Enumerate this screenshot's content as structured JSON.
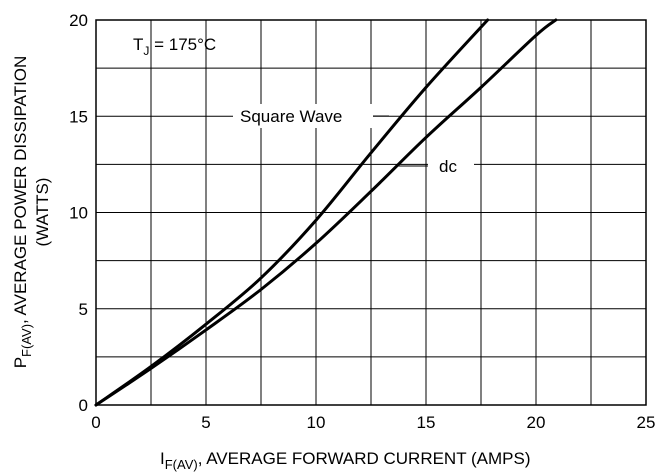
{
  "chart_data": {
    "type": "line",
    "xlabel": {
      "main": "I",
      "sub": "F(AV)",
      "rest": ", AVERAGE FORWARD CURRENT (AMPS)"
    },
    "ylabel": {
      "main": "P",
      "sub": "F(AV)",
      "rest": ", AVERAGE POWER DISSIPATION",
      "line2": "(WATTS)"
    },
    "xlim": [
      0,
      25
    ],
    "ylim": [
      0,
      20
    ],
    "x_ticks": [
      0,
      5,
      10,
      15,
      20,
      25
    ],
    "y_ticks": [
      0,
      5,
      10,
      15,
      20
    ],
    "x_grid_step": 2.5,
    "y_grid_step": 2.5,
    "grid": true,
    "condition": {
      "main": "T",
      "sub": "J",
      "rest": " = 175°C"
    },
    "series": [
      {
        "name": "Square Wave",
        "x": [
          0,
          2.5,
          5,
          7.5,
          10,
          12.5,
          15,
          17.8
        ],
        "y": [
          0,
          2.0,
          4.2,
          6.6,
          9.6,
          13.1,
          16.5,
          20.0
        ]
      },
      {
        "name": "dc",
        "x": [
          0,
          2.5,
          5,
          7.5,
          10,
          12.5,
          15,
          17.5,
          20,
          20.9
        ],
        "y": [
          0,
          1.9,
          3.9,
          6.0,
          8.4,
          11.1,
          13.9,
          16.5,
          19.2,
          20.0
        ]
      }
    ]
  }
}
